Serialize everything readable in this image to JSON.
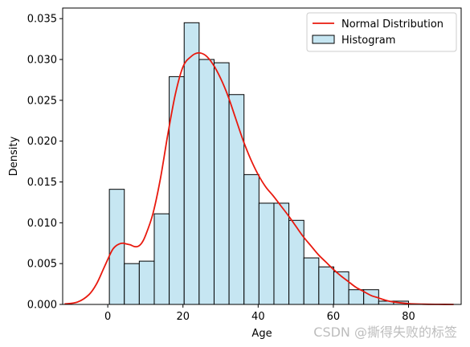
{
  "chart_data": {
    "type": "bar",
    "xlabel": "Age",
    "ylabel": "Density",
    "xlim": [
      -12,
      94
    ],
    "ylim": [
      0,
      0.0363
    ],
    "xticks": [
      0,
      20,
      40,
      60,
      80
    ],
    "yticks": [
      0.0,
      0.005,
      0.01,
      0.015,
      0.02,
      0.025,
      0.03,
      0.035
    ],
    "ytick_labels": [
      "0.000",
      "0.005",
      "0.010",
      "0.015",
      "0.020",
      "0.025",
      "0.030",
      "0.035"
    ],
    "legend_position": "top-right",
    "histogram": {
      "name": "Histogram",
      "color": "#c6e6f2",
      "edge_color": "#000000",
      "bin_edges": [
        0.42,
        4.4,
        8.38,
        12.36,
        16.34,
        20.32,
        24.3,
        28.28,
        32.26,
        36.24,
        40.22,
        44.2,
        48.18,
        52.16,
        56.14,
        60.12,
        64.1,
        68.08,
        72.06,
        76.04,
        80.0
      ],
      "densities": [
        0.0141,
        0.005,
        0.0053,
        0.0111,
        0.0279,
        0.0345,
        0.03,
        0.0296,
        0.0257,
        0.0159,
        0.0124,
        0.0124,
        0.0103,
        0.0057,
        0.0046,
        0.004,
        0.0018,
        0.0018,
        0.0004,
        0.0004
      ]
    },
    "curve": {
      "name": "Normal Distribution",
      "color": "#e8190e",
      "x": [
        -11.5,
        -8,
        -5,
        -3,
        -1,
        1,
        2,
        3,
        4,
        5,
        6,
        7,
        8,
        9,
        10,
        12,
        14,
        16,
        18,
        20,
        22,
        24,
        26,
        28,
        30,
        32,
        34,
        36,
        38,
        40,
        42,
        44,
        46,
        48,
        50,
        52,
        54,
        56,
        58,
        60,
        62,
        64,
        66,
        68,
        70,
        72,
        74,
        76,
        80,
        84,
        88,
        92
      ],
      "y": [
        5e-05,
        0.0003,
        0.0012,
        0.0025,
        0.0045,
        0.0065,
        0.0071,
        0.0074,
        0.0075,
        0.0074,
        0.0073,
        0.0071,
        0.0071,
        0.0075,
        0.0084,
        0.0111,
        0.0154,
        0.0209,
        0.0258,
        0.0291,
        0.0303,
        0.0308,
        0.0305,
        0.0294,
        0.0277,
        0.0255,
        0.0228,
        0.0201,
        0.0178,
        0.0159,
        0.0144,
        0.0133,
        0.0121,
        0.0109,
        0.0096,
        0.0083,
        0.0072,
        0.0061,
        0.0052,
        0.0043,
        0.0035,
        0.0028,
        0.0021,
        0.0016,
        0.0011,
        0.0008,
        0.0005,
        0.0003,
        0.0001,
        3e-05,
        1e-05,
        0.0
      ]
    }
  },
  "watermark": "CSDN @撕得失败的标签"
}
